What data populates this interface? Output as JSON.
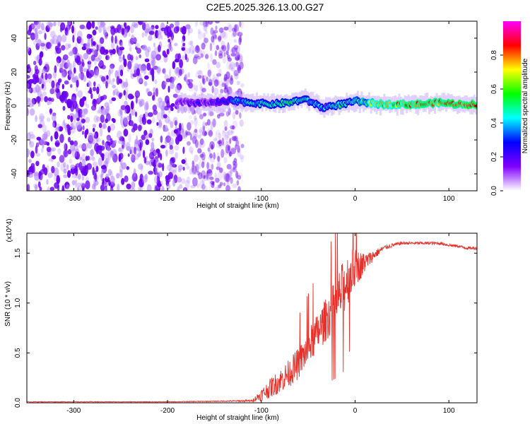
{
  "title": "C2E5.2025.326.13.00.G27",
  "chart_data": [
    {
      "type": "heatmap",
      "xlabel": "Height of straight line (km)",
      "ylabel": "Frequency (Hz)",
      "xlim": [
        -350,
        130
      ],
      "ylim": [
        -50,
        50
      ],
      "x_ticks": [
        -300,
        -200,
        -100,
        0,
        100
      ],
      "x_tick_labels": [
        "-300",
        "-200",
        "-100",
        "0",
        "100"
      ],
      "y_ticks": [
        -40,
        -20,
        0,
        20,
        40
      ],
      "y_tick_labels": [
        "-40",
        "-20",
        "0",
        "20",
        "40"
      ],
      "colorbar": {
        "label": "Normalized spectral amplitude",
        "range": [
          0,
          1
        ],
        "ticks": [
          0.0,
          0.2,
          0.4,
          0.6,
          0.8
        ],
        "tick_labels": [
          "0.0",
          "0.2",
          "0.4",
          "0.6",
          "0.8"
        ],
        "colors": [
          "#ffffff",
          "#8000ff",
          "#0000ff",
          "#00ffff",
          "#00ff00",
          "#ffff00",
          "#ff0000",
          "#ff00ff"
        ]
      },
      "noise_region": {
        "x_range": [
          -350,
          -120
        ],
        "f_range": [
          -50,
          50
        ],
        "level": 0.1
      },
      "signal_ridge": {
        "x": [
          -190,
          -170,
          -150,
          -130,
          -110,
          -90,
          -70,
          -55,
          -45,
          -35,
          -25,
          -15,
          -5,
          0,
          10,
          30,
          50,
          70,
          90,
          110,
          130
        ],
        "f": [
          2,
          2,
          2,
          3,
          2,
          1,
          2,
          4,
          2,
          -1,
          0,
          1,
          2,
          3,
          2,
          1,
          1,
          1,
          2,
          1,
          1
        ],
        "amplitude": [
          0.15,
          0.2,
          0.2,
          0.35,
          0.4,
          0.45,
          0.5,
          0.45,
          0.4,
          0.4,
          0.45,
          0.5,
          0.45,
          0.5,
          0.6,
          0.75,
          0.8,
          0.85,
          0.8,
          0.85,
          0.85
        ]
      }
    },
    {
      "type": "line",
      "xlabel": "Height of straight line (km)",
      "ylabel": "SNR (10 * v/v)",
      "y_multiplier": "(x10^4)",
      "xlim": [
        -350,
        130
      ],
      "ylim": [
        0,
        1.7
      ],
      "x_ticks": [
        -300,
        -200,
        -100,
        0,
        100
      ],
      "x_tick_labels": [
        "-300",
        "-200",
        "-100",
        "0",
        "100"
      ],
      "y_ticks": [
        0.0,
        0.5,
        1.0,
        1.5
      ],
      "y_tick_labels": [
        "0.0",
        "0.5",
        "1.0",
        "1.5"
      ],
      "color": "#e8302a",
      "series": [
        {
          "x": [
            -350,
            -300,
            -250,
            -200,
            -150,
            -110,
            -100,
            -90,
            -80,
            -70,
            -60,
            -50,
            -40,
            -30,
            -20,
            -15,
            -10,
            -5,
            0,
            10,
            20,
            30,
            40,
            50,
            60,
            70,
            80,
            90,
            100,
            110,
            120,
            130
          ],
          "values": [
            0.01,
            0.01,
            0.01,
            0.01,
            0.015,
            0.02,
            0.08,
            0.15,
            0.22,
            0.3,
            0.4,
            0.55,
            0.7,
            0.85,
            1.0,
            1.1,
            1.2,
            1.3,
            1.35,
            1.4,
            1.48,
            1.55,
            1.58,
            1.6,
            1.6,
            1.6,
            1.6,
            1.6,
            1.58,
            1.57,
            1.55,
            1.55
          ],
          "noise": [
            0.003,
            0.003,
            0.003,
            0.003,
            0.004,
            0.01,
            0.06,
            0.1,
            0.12,
            0.14,
            0.16,
            0.18,
            0.2,
            0.22,
            0.25,
            0.28,
            0.28,
            0.25,
            0.2,
            0.1,
            0.05,
            0.025,
            0.02,
            0.015,
            0.015,
            0.015,
            0.015,
            0.015,
            0.015,
            0.015,
            0.015,
            0.015
          ]
        }
      ]
    }
  ]
}
